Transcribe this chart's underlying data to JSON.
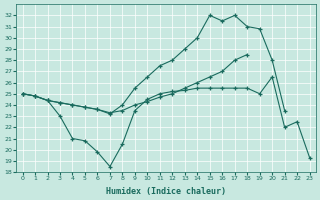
{
  "background_color": "#c8e8e0",
  "line_color": "#1a6b5e",
  "xlabel": "Humidex (Indice chaleur)",
  "xlim": [
    -0.5,
    23.5
  ],
  "ylim": [
    18,
    33
  ],
  "xticks": [
    0,
    1,
    2,
    3,
    4,
    5,
    6,
    7,
    8,
    9,
    10,
    11,
    12,
    13,
    14,
    15,
    16,
    17,
    18,
    19,
    20,
    21,
    22,
    23
  ],
  "yticks": [
    18,
    19,
    20,
    21,
    22,
    23,
    24,
    25,
    26,
    27,
    28,
    29,
    30,
    31,
    32
  ],
  "y_top": [
    25,
    24.8,
    24.4,
    24.2,
    24.0,
    23.8,
    23.6,
    23.2,
    24.0,
    25.5,
    26.5,
    27.5,
    28.0,
    29.0,
    30.0,
    32.0,
    31.5,
    32.0,
    31.0,
    30.8,
    28.0,
    null,
    null,
    null
  ],
  "y_mid": [
    25,
    24.8,
    24.4,
    24.2,
    24.0,
    23.8,
    23.6,
    23.3,
    23.5,
    24.0,
    24.3,
    24.7,
    25.0,
    25.4,
    26.0,
    26.5,
    27.0,
    28.0,
    28.5,
    null,
    null,
    null,
    null,
    null
  ],
  "y_bot": [
    25,
    24.8,
    24.4,
    23.0,
    21.0,
    20.8,
    19.8,
    18.5,
    20.5,
    23.5,
    24.5,
    25.0,
    25.2,
    25.3,
    25.5,
    25.5,
    25.5,
    25.5,
    25.5,
    25.0,
    26.5,
    22.0,
    22.5,
    19.3
  ],
  "x": [
    0,
    1,
    2,
    3,
    4,
    5,
    6,
    7,
    8,
    9,
    10,
    11,
    12,
    13,
    14,
    15,
    16,
    17,
    18,
    19,
    20,
    21,
    22,
    23
  ]
}
